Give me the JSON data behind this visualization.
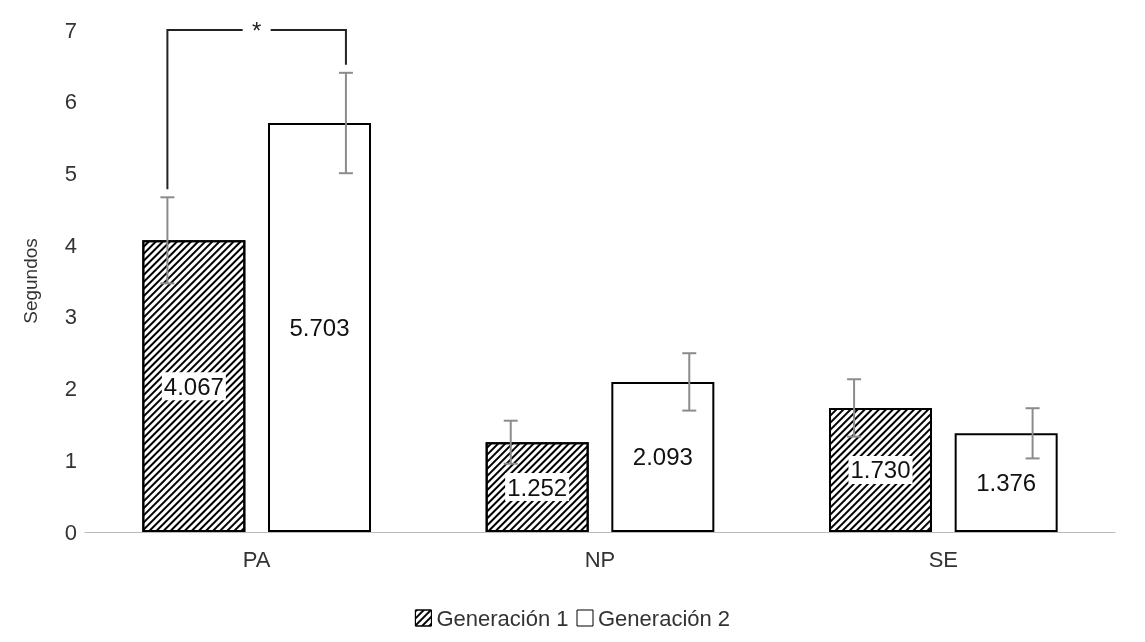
{
  "chart_data": {
    "type": "bar",
    "ylabel": "Segundos",
    "categories": [
      "PA",
      "NP",
      "SE"
    ],
    "series": [
      {
        "name": "Generación 1",
        "color": "#000000",
        "values": [
          4.067,
          1.252,
          1.73
        ],
        "value_labels": [
          "4.067",
          "1.252",
          "1.730"
        ],
        "errors": [
          0.6,
          0.3,
          0.4
        ]
      },
      {
        "name": "Generación 2",
        "color": "#ffffff",
        "values": [
          5.703,
          2.093,
          1.376
        ],
        "value_labels": [
          "5.703",
          "2.093",
          "1.376"
        ],
        "errors": [
          0.7,
          0.4,
          0.35
        ]
      }
    ],
    "ylim": [
      0,
      7
    ],
    "yticks": [
      0,
      1,
      2,
      3,
      4,
      5,
      6,
      7
    ],
    "grid": false,
    "legend": "bottom",
    "annotations": [
      "*"
    ]
  }
}
